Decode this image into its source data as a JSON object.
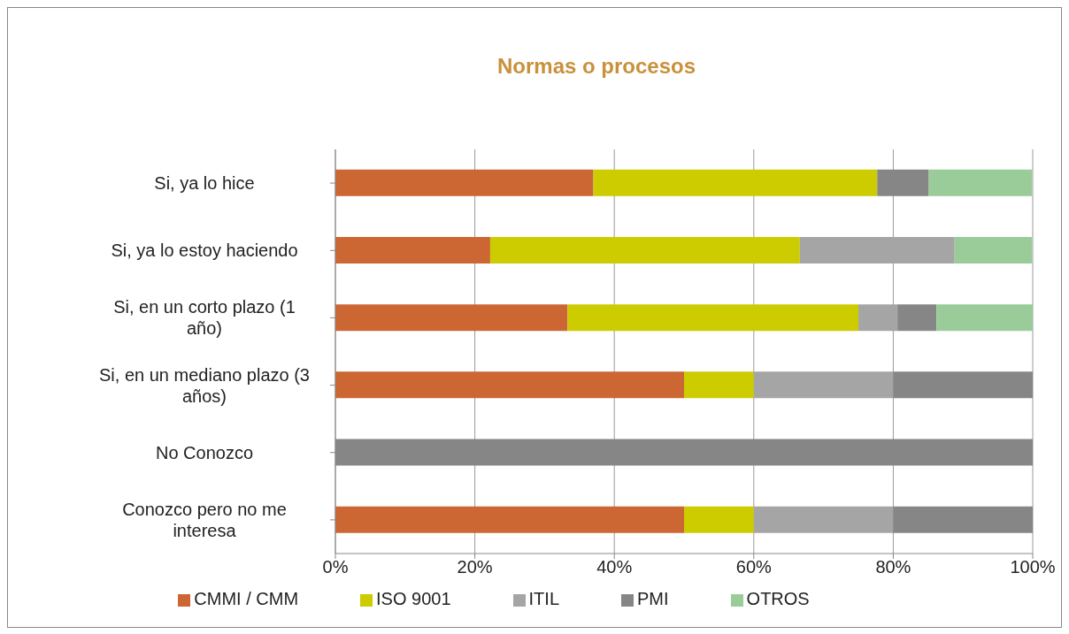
{
  "chart_data": {
    "type": "bar",
    "orientation": "horizontal",
    "stacked": true,
    "title": "Normas o procesos",
    "categories": [
      "Si, ya lo hice",
      "Si, ya lo estoy haciendo",
      "Si, en un corto plazo (1 año)",
      "Si, en un mediano plazo (3 años)",
      "No Conozco",
      "Conozco pero no me interesa"
    ],
    "series": [
      {
        "name": "CMMI / CMM",
        "color": "#cc6633",
        "values": [
          37.0,
          22.2,
          33.3,
          50,
          0,
          50
        ]
      },
      {
        "name": "ISO 9001",
        "color": "#cccc00",
        "values": [
          40.7,
          44.4,
          41.7,
          10,
          0,
          10
        ]
      },
      {
        "name": "ITIL",
        "color": "#a5a5a5",
        "values": [
          0,
          22.2,
          5.6,
          20,
          0,
          20
        ]
      },
      {
        "name": "PMI",
        "color": "#868686",
        "values": [
          7.4,
          0,
          5.6,
          20,
          100,
          20
        ]
      },
      {
        "name": "OTROS",
        "color": "#99cc99",
        "values": [
          14.8,
          11.1,
          13.9,
          0,
          0,
          0
        ]
      }
    ],
    "xlim": [
      0,
      100
    ],
    "xticks": [
      {
        "value": 0,
        "label": "0%"
      },
      {
        "value": 20,
        "label": "20%"
      },
      {
        "value": 40,
        "label": "40%"
      },
      {
        "value": 60,
        "label": "60%"
      },
      {
        "value": 80,
        "label": "80%"
      },
      {
        "value": 100,
        "label": "100%"
      }
    ],
    "grid": "x",
    "legend": "bottom"
  }
}
